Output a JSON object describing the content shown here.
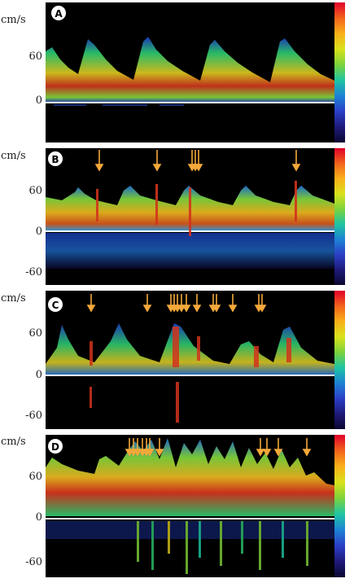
{
  "units_label": "cm/s",
  "colors": {
    "spectrum_background": "#000000",
    "baseline": "#ffffff",
    "artifact_arrow": "#f4a83a",
    "colorbar_stops": [
      "#e0002a",
      "#f3631c",
      "#f9b11a",
      "#d9e21b",
      "#7cd33b",
      "#1fc5a3",
      "#1d83d5",
      "#2b3fc7",
      "#1f1a7a",
      "#0a0730"
    ]
  },
  "panels": [
    {
      "id": "A",
      "label": "A",
      "ticks": [
        "60",
        "0"
      ],
      "arrow_count": 0
    },
    {
      "id": "B",
      "label": "B",
      "ticks": [
        "60",
        "0",
        "-60"
      ],
      "arrow_count": 6
    },
    {
      "id": "C",
      "label": "C",
      "ticks": [
        "60",
        "0",
        "-60"
      ],
      "arrow_count": 13
    },
    {
      "id": "D",
      "label": "D",
      "ticks": [
        "60",
        "0",
        "-60"
      ],
      "arrow_count": 11
    }
  ]
}
